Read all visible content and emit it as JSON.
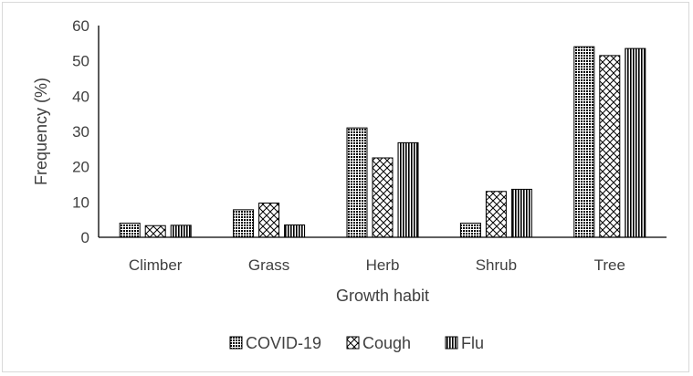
{
  "chart_data": {
    "type": "bar",
    "title": "",
    "xlabel": "Growth habit",
    "ylabel": "Frequency (%)",
    "ylim": [
      0,
      60
    ],
    "yticks": [
      0,
      10,
      20,
      30,
      40,
      50,
      60
    ],
    "grid": false,
    "legend_position": "bottom",
    "categories": [
      "Climber",
      "Grass",
      "Herb",
      "Shrub",
      "Tree"
    ],
    "series": [
      {
        "name": "COVID-19",
        "pattern": "dense-dots",
        "values": [
          4,
          7.8,
          31,
          4,
          54
        ]
      },
      {
        "name": "Cough",
        "pattern": "crosshatch",
        "values": [
          3.3,
          9.7,
          22.5,
          13,
          51.5
        ]
      },
      {
        "name": "Flu",
        "pattern": "vertical-lines",
        "values": [
          3.4,
          3.5,
          26.8,
          13.6,
          53.5
        ]
      }
    ],
    "colors": {
      "ink": "#404040",
      "bar_edge": "#000000",
      "frame": "#d9d9d9"
    }
  }
}
